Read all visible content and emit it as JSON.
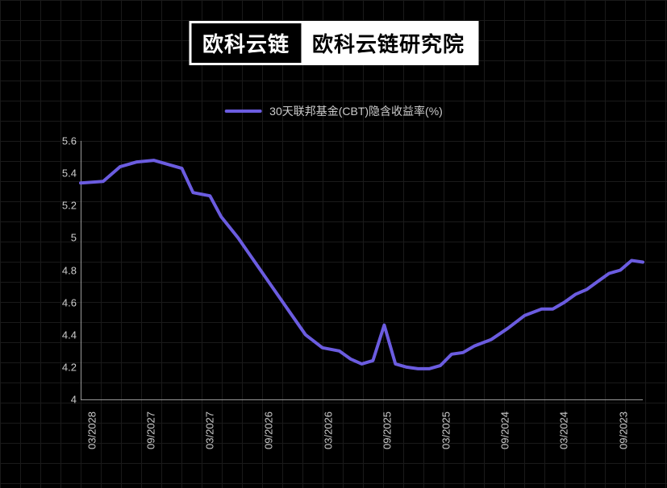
{
  "header": {
    "badge_left": "欧科云链",
    "badge_right": "欧科云链研究院"
  },
  "legend": {
    "label": "30天联邦基金(CBT)隐含收益率(%)",
    "color": "#6b5ce0"
  },
  "chart": {
    "type": "line",
    "background_color": "#000000",
    "grid_color": "#1a1a1a",
    "axis_color": "#999999",
    "text_color": "#cccccc",
    "line_color": "#6b5ce0",
    "line_width": 4,
    "ylim": [
      4.0,
      5.6
    ],
    "ytick_step": 0.2,
    "y_ticks": [
      4.0,
      4.2,
      4.4,
      4.6,
      4.8,
      5.0,
      5.2,
      5.4,
      5.6
    ],
    "y_tick_labels": [
      "4",
      "4.2",
      "4.4",
      "4.6",
      "4.8",
      "5",
      "5.2",
      "5.4",
      "5.6"
    ],
    "x_tick_labels": [
      "03/2028",
      "09/2027",
      "03/2027",
      "09/2026",
      "03/2026",
      "09/2025",
      "03/2025",
      "09/2024",
      "03/2024",
      "09/2023"
    ],
    "x_tick_positions": [
      0.02,
      0.125,
      0.23,
      0.335,
      0.44,
      0.545,
      0.65,
      0.755,
      0.86,
      0.965
    ],
    "data": [
      {
        "x": 0.0,
        "y": 5.34
      },
      {
        "x": 0.04,
        "y": 5.35
      },
      {
        "x": 0.07,
        "y": 5.44
      },
      {
        "x": 0.1,
        "y": 5.47
      },
      {
        "x": 0.13,
        "y": 5.48
      },
      {
        "x": 0.16,
        "y": 5.45
      },
      {
        "x": 0.18,
        "y": 5.43
      },
      {
        "x": 0.2,
        "y": 5.28
      },
      {
        "x": 0.23,
        "y": 5.26
      },
      {
        "x": 0.25,
        "y": 5.13
      },
      {
        "x": 0.28,
        "y": 5.0
      },
      {
        "x": 0.31,
        "y": 4.85
      },
      {
        "x": 0.34,
        "y": 4.7
      },
      {
        "x": 0.37,
        "y": 4.55
      },
      {
        "x": 0.4,
        "y": 4.4
      },
      {
        "x": 0.43,
        "y": 4.32
      },
      {
        "x": 0.46,
        "y": 4.3
      },
      {
        "x": 0.48,
        "y": 4.25
      },
      {
        "x": 0.5,
        "y": 4.22
      },
      {
        "x": 0.52,
        "y": 4.24
      },
      {
        "x": 0.54,
        "y": 4.46
      },
      {
        "x": 0.56,
        "y": 4.22
      },
      {
        "x": 0.58,
        "y": 4.2
      },
      {
        "x": 0.6,
        "y": 4.19
      },
      {
        "x": 0.62,
        "y": 4.19
      },
      {
        "x": 0.64,
        "y": 4.21
      },
      {
        "x": 0.66,
        "y": 4.28
      },
      {
        "x": 0.68,
        "y": 4.29
      },
      {
        "x": 0.7,
        "y": 4.33
      },
      {
        "x": 0.73,
        "y": 4.37
      },
      {
        "x": 0.76,
        "y": 4.44
      },
      {
        "x": 0.79,
        "y": 4.52
      },
      {
        "x": 0.82,
        "y": 4.56
      },
      {
        "x": 0.84,
        "y": 4.56
      },
      {
        "x": 0.86,
        "y": 4.6
      },
      {
        "x": 0.88,
        "y": 4.65
      },
      {
        "x": 0.9,
        "y": 4.68
      },
      {
        "x": 0.92,
        "y": 4.73
      },
      {
        "x": 0.94,
        "y": 4.78
      },
      {
        "x": 0.96,
        "y": 4.8
      },
      {
        "x": 0.98,
        "y": 4.86
      },
      {
        "x": 1.0,
        "y": 4.85
      }
    ],
    "label_fontsize": 13,
    "legend_fontsize": 14,
    "title_fontsize": 26
  }
}
